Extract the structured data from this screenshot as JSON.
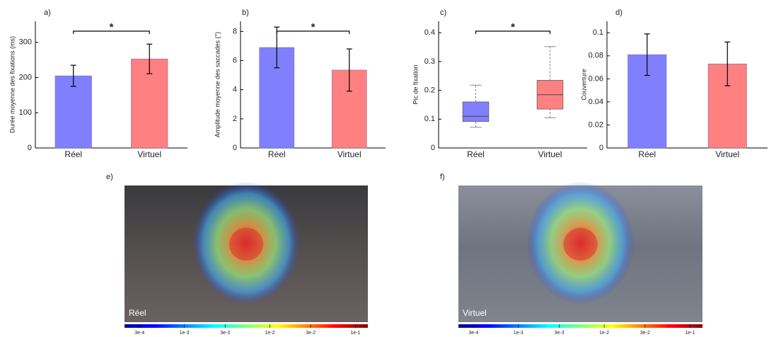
{
  "chart_data": [
    {
      "type": "bar",
      "title": "a)",
      "ylabel": "Durée moyenne des fixations (ms)",
      "categories": [
        "Réel",
        "Virtuel"
      ],
      "values": [
        205,
        253
      ],
      "errors": [
        30,
        42
      ],
      "colors": [
        "#8080ff",
        "#ff8080"
      ],
      "ylim": [
        0,
        360
      ],
      "yticks": [
        0,
        100,
        200,
        300
      ],
      "significance": "*"
    },
    {
      "type": "bar",
      "title": "b)",
      "ylabel": "Amplitude moyenne des saccades (°)",
      "categories": [
        "Réel",
        "Virtuel"
      ],
      "values": [
        6.9,
        5.35
      ],
      "errors": [
        1.4,
        1.45
      ],
      "colors": [
        "#8080ff",
        "#ff8080"
      ],
      "ylim": [
        0,
        8.7
      ],
      "yticks": [
        0,
        2,
        4,
        6,
        8
      ],
      "significance": "*"
    },
    {
      "type": "box",
      "title": "c)",
      "ylabel": "Pic de fixation",
      "categories": [
        "Réel",
        "Virtuel"
      ],
      "boxes": [
        {
          "whislo": 0.072,
          "q1": 0.092,
          "med": 0.11,
          "q3": 0.16,
          "whishi": 0.218
        },
        {
          "whislo": 0.105,
          "q1": 0.135,
          "med": 0.185,
          "q3": 0.235,
          "whishi": 0.352
        }
      ],
      "colors": [
        "#8080ff",
        "#ff8080"
      ],
      "ylim": [
        0,
        0.44
      ],
      "yticks": [
        0,
        0.1,
        0.2,
        0.3,
        0.4
      ],
      "significance": "*"
    },
    {
      "type": "bar",
      "title": "d)",
      "ylabel": "Couverture",
      "categories": [
        "Réel",
        "Virtuel"
      ],
      "values": [
        0.081,
        0.073
      ],
      "errors": [
        0.018,
        0.019
      ],
      "colors": [
        "#8080ff",
        "#ff8080"
      ],
      "ylim": [
        0,
        0.11
      ],
      "yticks": [
        0,
        0.02,
        0.04,
        0.06,
        0.08,
        0.1
      ]
    },
    {
      "type": "heatmap",
      "title": "e)",
      "label": "Réel",
      "colorbar": {
        "log": true,
        "xlim": [
          0.0002,
          0.14
        ],
        "xticks": [
          {
            "value": 0.0003,
            "label": "3e-4"
          },
          {
            "value": 0.001,
            "label": "1e-3"
          },
          {
            "value": 0.003,
            "label": "3e-3"
          },
          {
            "value": 0.01,
            "label": "1e-2"
          },
          {
            "value": 0.03,
            "label": "3e-2"
          },
          {
            "value": 0.1,
            "label": "1e-1"
          }
        ]
      }
    },
    {
      "type": "heatmap",
      "title": "f)",
      "label": "Virtuel",
      "colorbar": {
        "log": true,
        "xlim": [
          0.0002,
          0.14
        ],
        "xticks": [
          {
            "value": 0.0003,
            "label": "3e-4"
          },
          {
            "value": 0.001,
            "label": "1e-3"
          },
          {
            "value": 0.003,
            "label": "3e-3"
          },
          {
            "value": 0.01,
            "label": "1e-2"
          },
          {
            "value": 0.03,
            "label": "3e-2"
          },
          {
            "value": 0.1,
            "label": "1e-1"
          }
        ]
      }
    }
  ]
}
